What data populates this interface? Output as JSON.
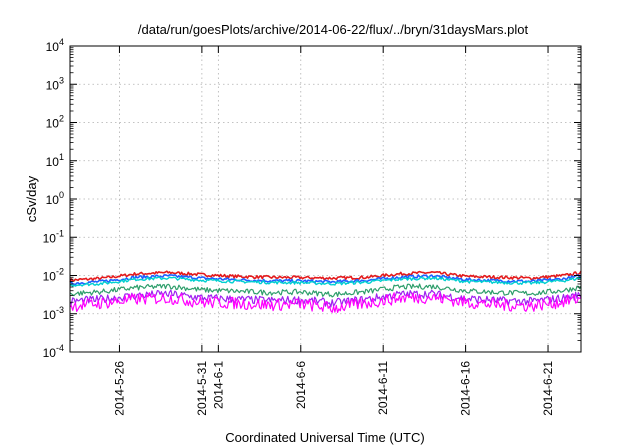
{
  "chart_data": {
    "type": "line",
    "title": "/data/run/goesPlots/archive/2014-06-22/flux/../bryn/31daysMars.plot",
    "xlabel": "Coordinated Universal Time (UTC)",
    "ylabel": "cSv/day",
    "yscale": "log",
    "ylim": [
      0.0001,
      10000
    ],
    "y_ticks": [
      {
        "base": "10",
        "exp": "-4"
      },
      {
        "base": "10",
        "exp": "-3"
      },
      {
        "base": "10",
        "exp": "-2"
      },
      {
        "base": "10",
        "exp": "-1"
      },
      {
        "base": "10",
        "exp": "0"
      },
      {
        "base": "10",
        "exp": "1"
      },
      {
        "base": "10",
        "exp": "2"
      },
      {
        "base": "10",
        "exp": "3"
      },
      {
        "base": "10",
        "exp": "4"
      }
    ],
    "xlim": [
      "2014-05-23",
      "2014-06-23"
    ],
    "x_ticks": [
      "2014-5-26",
      "2014-5-31",
      "2014-6-1",
      "2014-6-6",
      "2014-6-11",
      "2014-6-16",
      "2014-6-21"
    ],
    "grid": true,
    "x": [
      "2014-05-23",
      "2014-05-25",
      "2014-05-27",
      "2014-05-29",
      "2014-05-31",
      "2014-06-02",
      "2014-06-04",
      "2014-06-06",
      "2014-06-08",
      "2014-06-10",
      "2014-06-12",
      "2014-06-14",
      "2014-06-16",
      "2014-06-18",
      "2014-06-20",
      "2014-06-22",
      "2014-06-23"
    ],
    "series": [
      {
        "color": "#e41a1c",
        "values": [
          0.0075,
          0.0085,
          0.011,
          0.012,
          0.0105,
          0.0095,
          0.009,
          0.0088,
          0.0085,
          0.009,
          0.011,
          0.012,
          0.0095,
          0.009,
          0.0085,
          0.01,
          0.012
        ]
      },
      {
        "color": "#1f5fff",
        "values": [
          0.0062,
          0.007,
          0.009,
          0.0098,
          0.0085,
          0.0078,
          0.0073,
          0.0072,
          0.0068,
          0.0075,
          0.009,
          0.0098,
          0.0078,
          0.0073,
          0.007,
          0.0082,
          0.0098
        ]
      },
      {
        "color": "#00d0d0",
        "values": [
          0.0056,
          0.0062,
          0.008,
          0.0086,
          0.0075,
          0.007,
          0.0066,
          0.0065,
          0.0061,
          0.0067,
          0.008,
          0.0086,
          0.007,
          0.0066,
          0.0063,
          0.0074,
          0.0086
        ]
      },
      {
        "color": "#2e9e6b",
        "values": [
          0.0033,
          0.0038,
          0.0048,
          0.0053,
          0.0042,
          0.0039,
          0.0036,
          0.0037,
          0.0032,
          0.0038,
          0.005,
          0.0052,
          0.004,
          0.0036,
          0.0034,
          0.0041,
          0.005
        ]
      },
      {
        "color": "#a020f0",
        "values": [
          0.0021,
          0.0024,
          0.003,
          0.0033,
          0.0026,
          0.0024,
          0.0022,
          0.0023,
          0.0019,
          0.0024,
          0.0032,
          0.0033,
          0.0025,
          0.0022,
          0.0021,
          0.0026,
          0.0031
        ]
      },
      {
        "color": "#ff00ff",
        "values": [
          0.0016,
          0.0019,
          0.0024,
          0.0026,
          0.002,
          0.0019,
          0.0017,
          0.0018,
          0.0014,
          0.0019,
          0.0026,
          0.0027,
          0.002,
          0.0017,
          0.0016,
          0.0021,
          0.0025
        ]
      }
    ]
  }
}
